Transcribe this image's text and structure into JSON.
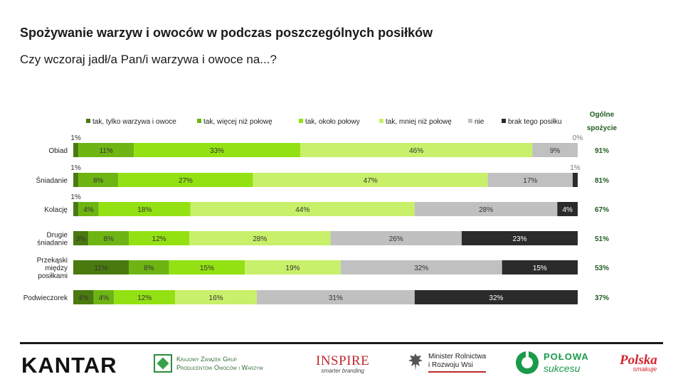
{
  "title": "Spożywanie warzyw i owoców w podczas poszczególnych posiłków",
  "subtitle": "Czy wczoraj jadł/a Pan/i warzywa i owoce na...?",
  "overall_header": "Ogólne spożycie",
  "colors": {
    "series": [
      "#4a7a0f",
      "#6eb514",
      "#93e112",
      "#c8f06a",
      "#c0c0c0",
      "#2b2b2b"
    ],
    "overall_text": "#1f5c1f"
  },
  "chart_data": {
    "type": "bar",
    "orientation": "horizontal",
    "stacked": true,
    "normalized": true,
    "legend_position": "top",
    "categories": [
      "Obiad",
      "Śniadanie",
      "Kolację",
      "Drugie\nśniadanie",
      "Przekąski\nmiędzy\nposiłkami",
      "Podwieczorek"
    ],
    "series": [
      {
        "name": "tak, tylko warzywa i owoce",
        "values": [
          1,
          1,
          1,
          3,
          11,
          4
        ]
      },
      {
        "name": "tak, więcej niż połowę",
        "values": [
          11,
          8,
          4,
          8,
          8,
          4
        ]
      },
      {
        "name": "tak, około połowy",
        "values": [
          33,
          27,
          18,
          12,
          15,
          12
        ]
      },
      {
        "name": "tak, mniej niż połowę",
        "values": [
          46,
          47,
          44,
          28,
          19,
          16
        ]
      },
      {
        "name": "nie",
        "values": [
          9,
          17,
          28,
          26,
          32,
          31
        ]
      },
      {
        "name": "brak tego posiłku",
        "values": [
          0,
          1,
          4,
          23,
          15,
          32
        ]
      }
    ],
    "overall": [
      "91%",
      "81%",
      "67%",
      "51%",
      "53%",
      "37%"
    ]
  },
  "logos": {
    "kantar": "KANTAR",
    "kzg": [
      "Krajowy Związek Grup",
      "Producentów Owoców i Warzyw"
    ],
    "inspire": [
      "INSPIRE",
      "smarter branding"
    ],
    "minister": [
      "Minister Rolnictwa",
      "i Rozwoju Wsi"
    ],
    "polowa": [
      "POŁOWA",
      "sukcesu"
    ],
    "polska": [
      "Polska",
      "smakuje"
    ]
  }
}
